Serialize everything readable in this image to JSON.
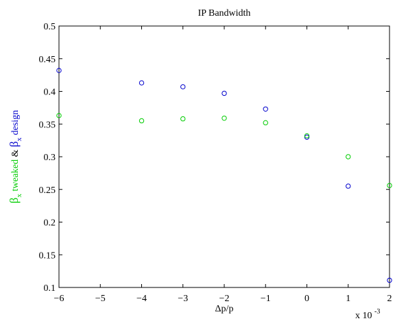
{
  "chart_data": {
    "type": "scatter",
    "title": "IP Bandwidth",
    "xlabel": "Δp/p",
    "x_multiplier_label": "x 10",
    "x_multiplier_exponent": "-3",
    "ylabel_parts": [
      {
        "text": "β",
        "color": "#00cc00",
        "kind": "greek"
      },
      {
        "text": "x",
        "color": "#00cc00",
        "kind": "sub"
      },
      {
        "text": " tweaked",
        "color": "#00cc00",
        "kind": "text"
      },
      {
        "text": " & ",
        "color": "#000000",
        "kind": "text"
      },
      {
        "text": "β",
        "color": "#0000cc",
        "kind": "greek"
      },
      {
        "text": "x",
        "color": "#0000cc",
        "kind": "sub"
      },
      {
        "text": " design",
        "color": "#0000cc",
        "kind": "text"
      }
    ],
    "xlim": [
      -6,
      2
    ],
    "ylim": [
      0.1,
      0.5
    ],
    "xticks": [
      -6,
      -5,
      -4,
      -3,
      -2,
      -1,
      0,
      1,
      2
    ],
    "yticks": [
      0.1,
      0.15,
      0.2,
      0.25,
      0.3,
      0.35,
      0.4,
      0.45,
      0.5
    ],
    "xtick_labels": [
      "−6",
      "−5",
      "−4",
      "−3",
      "−2",
      "−1",
      "0",
      "1",
      "2"
    ],
    "ytick_labels": [
      "0.1",
      "0.15",
      "0.2",
      "0.25",
      "0.3",
      "0.35",
      "0.4",
      "0.45",
      "0.5"
    ],
    "grid": false,
    "series": [
      {
        "color": "#0000cc",
        "marker": "circle-open",
        "x": [
          -6,
          -4,
          -3,
          -2,
          -1,
          0,
          1,
          2
        ],
        "y": [
          0.432,
          0.413,
          0.407,
          0.397,
          0.373,
          0.33,
          0.255,
          0.111
        ]
      },
      {
        "color": "#00cc00",
        "marker": "circle-open",
        "x": [
          -6,
          -4,
          -3,
          -2,
          -1,
          0,
          1,
          2
        ],
        "y": [
          0.363,
          0.355,
          0.358,
          0.359,
          0.352,
          0.332,
          0.3,
          0.256
        ]
      }
    ]
  }
}
